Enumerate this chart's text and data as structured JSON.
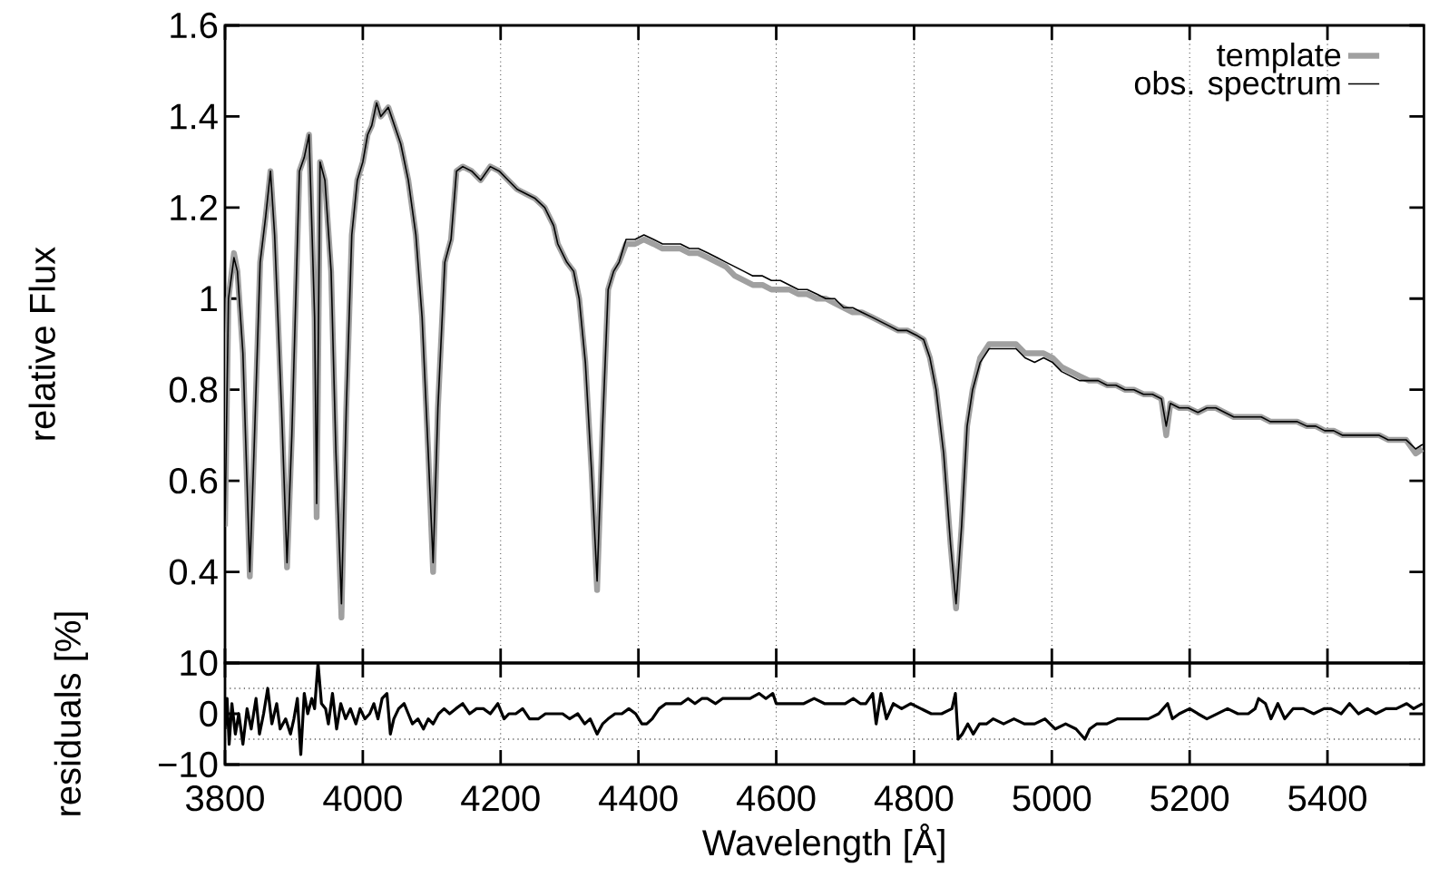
{
  "chart_data": [
    {
      "type": "line",
      "ylabel": "relative Flux",
      "xlim": [
        3800,
        5540
      ],
      "ylim": [
        0.2,
        1.6
      ],
      "xticks": [
        {
          "value": 3800,
          "label": null
        },
        {
          "value": 4000,
          "label": null
        },
        {
          "value": 4200,
          "label": null
        },
        {
          "value": 4400,
          "label": null
        },
        {
          "value": 4600,
          "label": null
        },
        {
          "value": 4800,
          "label": null
        },
        {
          "value": 5000,
          "label": null
        },
        {
          "value": 5200,
          "label": null
        },
        {
          "value": 5400,
          "label": null
        }
      ],
      "yticks": [
        0.4,
        0.6,
        0.8,
        1,
        1.2,
        1.4,
        1.6
      ],
      "tick_labels": "y",
      "grid": "x",
      "legend": "top right",
      "x": [
        3800,
        3805,
        3813,
        3818,
        3826,
        3836,
        3842,
        3851,
        3859,
        3866,
        3872,
        3882,
        3890,
        3897,
        3908,
        3915,
        3922,
        3930,
        3933,
        3938,
        3945,
        3954,
        3961,
        3969,
        3976,
        3984,
        3992,
        4000,
        4007,
        4013,
        4020,
        4026,
        4037,
        4046,
        4055,
        4066,
        4077,
        4086,
        4095,
        4102,
        4109,
        4119,
        4128,
        4136,
        4145,
        4158,
        4171,
        4185,
        4198,
        4211,
        4224,
        4237,
        4250,
        4264,
        4277,
        4283,
        4296,
        4306,
        4314,
        4323,
        4332,
        4340,
        4348,
        4356,
        4364,
        4372,
        4382,
        4395,
        4408,
        4422,
        4435,
        4448,
        4461,
        4474,
        4487,
        4501,
        4514,
        4527,
        4540,
        4553,
        4566,
        4580,
        4593,
        4606,
        4619,
        4632,
        4645,
        4659,
        4672,
        4685,
        4698,
        4711,
        4724,
        4738,
        4751,
        4764,
        4777,
        4790,
        4803,
        4814,
        4823,
        4832,
        4843,
        4853,
        4861,
        4869,
        4877,
        4885,
        4896,
        4909,
        4922,
        4935,
        4948,
        4961,
        4975,
        4988,
        5001,
        5014,
        5027,
        5040,
        5054,
        5067,
        5080,
        5093,
        5106,
        5119,
        5133,
        5146,
        5159,
        5166,
        5172,
        5185,
        5198,
        5212,
        5225,
        5238,
        5251,
        5264,
        5277,
        5291,
        5304,
        5317,
        5330,
        5343,
        5356,
        5370,
        5383,
        5396,
        5409,
        5422,
        5435,
        5449,
        5462,
        5475,
        5488,
        5501,
        5514,
        5528,
        5538
      ],
      "series": [
        {
          "name": "template",
          "color": "#a0a0a0",
          "values": [
            0.5,
            1.0,
            1.1,
            1.06,
            0.88,
            0.39,
            0.66,
            1.08,
            1.18,
            1.28,
            1.14,
            0.76,
            0.41,
            0.7,
            1.28,
            1.31,
            1.36,
            0.96,
            0.52,
            1.3,
            1.26,
            1.06,
            0.66,
            0.3,
            0.76,
            1.14,
            1.26,
            1.3,
            1.36,
            1.38,
            1.43,
            1.4,
            1.42,
            1.38,
            1.34,
            1.26,
            1.14,
            0.96,
            0.66,
            0.4,
            0.76,
            1.08,
            1.13,
            1.28,
            1.29,
            1.28,
            1.26,
            1.29,
            1.28,
            1.26,
            1.24,
            1.23,
            1.22,
            1.2,
            1.16,
            1.12,
            1.08,
            1.06,
            1.0,
            0.86,
            0.62,
            0.36,
            0.72,
            1.02,
            1.06,
            1.08,
            1.12,
            1.12,
            1.13,
            1.12,
            1.11,
            1.11,
            1.11,
            1.1,
            1.1,
            1.09,
            1.08,
            1.07,
            1.05,
            1.04,
            1.03,
            1.03,
            1.02,
            1.02,
            1.02,
            1.01,
            1.01,
            1.0,
            1.0,
            0.99,
            0.98,
            0.97,
            0.97,
            0.96,
            0.95,
            0.94,
            0.93,
            0.93,
            0.92,
            0.91,
            0.87,
            0.8,
            0.66,
            0.46,
            0.32,
            0.5,
            0.72,
            0.8,
            0.87,
            0.9,
            0.9,
            0.9,
            0.9,
            0.88,
            0.88,
            0.88,
            0.87,
            0.85,
            0.84,
            0.83,
            0.82,
            0.82,
            0.81,
            0.81,
            0.8,
            0.8,
            0.79,
            0.79,
            0.78,
            0.7,
            0.77,
            0.76,
            0.76,
            0.75,
            0.76,
            0.76,
            0.75,
            0.74,
            0.74,
            0.74,
            0.74,
            0.73,
            0.73,
            0.73,
            0.73,
            0.72,
            0.72,
            0.71,
            0.71,
            0.7,
            0.7,
            0.7,
            0.7,
            0.7,
            0.69,
            0.69,
            0.69,
            0.66,
            0.67
          ]
        },
        {
          "name": "obs. spectrum",
          "color": "#000000",
          "values": [
            0.5,
            1.0,
            1.09,
            1.06,
            0.88,
            0.4,
            0.66,
            1.08,
            1.18,
            1.28,
            1.14,
            0.76,
            0.42,
            0.7,
            1.28,
            1.31,
            1.36,
            0.96,
            0.55,
            1.3,
            1.26,
            1.06,
            0.66,
            0.33,
            0.76,
            1.14,
            1.26,
            1.3,
            1.36,
            1.38,
            1.43,
            1.4,
            1.42,
            1.38,
            1.34,
            1.26,
            1.14,
            0.96,
            0.66,
            0.42,
            0.76,
            1.08,
            1.13,
            1.28,
            1.29,
            1.28,
            1.26,
            1.29,
            1.28,
            1.26,
            1.24,
            1.23,
            1.22,
            1.2,
            1.16,
            1.12,
            1.08,
            1.06,
            1.0,
            0.86,
            0.62,
            0.38,
            0.72,
            1.02,
            1.06,
            1.08,
            1.13,
            1.13,
            1.14,
            1.13,
            1.12,
            1.12,
            1.12,
            1.11,
            1.11,
            1.1,
            1.09,
            1.08,
            1.07,
            1.06,
            1.05,
            1.05,
            1.04,
            1.04,
            1.03,
            1.02,
            1.02,
            1.01,
            1.0,
            1.0,
            0.98,
            0.98,
            0.97,
            0.96,
            0.95,
            0.94,
            0.93,
            0.93,
            0.92,
            0.91,
            0.87,
            0.8,
            0.66,
            0.46,
            0.33,
            0.5,
            0.72,
            0.8,
            0.86,
            0.89,
            0.89,
            0.89,
            0.89,
            0.87,
            0.86,
            0.87,
            0.86,
            0.84,
            0.83,
            0.82,
            0.82,
            0.82,
            0.81,
            0.81,
            0.8,
            0.8,
            0.79,
            0.79,
            0.78,
            0.72,
            0.77,
            0.76,
            0.76,
            0.75,
            0.76,
            0.76,
            0.75,
            0.74,
            0.74,
            0.74,
            0.74,
            0.73,
            0.73,
            0.73,
            0.73,
            0.72,
            0.72,
            0.71,
            0.71,
            0.7,
            0.7,
            0.7,
            0.7,
            0.7,
            0.69,
            0.69,
            0.69,
            0.67,
            0.68
          ]
        }
      ]
    },
    {
      "type": "line",
      "xlabel": "Wavelength [Å]",
      "ylabel": "residuals [%]",
      "xlim": [
        3800,
        5540
      ],
      "ylim": [
        -10,
        10
      ],
      "xticks": [
        3800,
        4000,
        4200,
        4400,
        4600,
        4800,
        5000,
        5200,
        5400
      ],
      "yticks": [
        {
          "value": -10,
          "label": "−10"
        },
        0,
        10
      ],
      "grid": "x",
      "ref_lines": [
        {
          "axis": "y",
          "value": 5,
          "line_style": "dotted"
        },
        {
          "axis": "y",
          "value": -5,
          "line_style": "dotted"
        }
      ],
      "x": [
        3800,
        3803,
        3806,
        3810,
        3815,
        3820,
        3826,
        3832,
        3838,
        3845,
        3850,
        3856,
        3862,
        3868,
        3875,
        3880,
        3888,
        3895,
        3900,
        3905,
        3910,
        3915,
        3920,
        3926,
        3930,
        3935,
        3940,
        3946,
        3950,
        3956,
        3962,
        3968,
        3975,
        3982,
        3990,
        3996,
        4003,
        4010,
        4016,
        4022,
        4028,
        4035,
        4040,
        4045,
        4052,
        4060,
        4066,
        4072,
        4080,
        4088,
        4095,
        4102,
        4110,
        4118,
        4126,
        4135,
        4145,
        4155,
        4165,
        4175,
        4185,
        4196,
        4205,
        4212,
        4222,
        4232,
        4242,
        4255,
        4265,
        4278,
        4290,
        4300,
        4312,
        4322,
        4330,
        4340,
        4348,
        4356,
        4366,
        4376,
        4386,
        4396,
        4405,
        4412,
        4420,
        4430,
        4440,
        4452,
        4462,
        4472,
        4482,
        4492,
        4500,
        4512,
        4522,
        4532,
        4542,
        4552,
        4562,
        4575,
        4585,
        4595,
        4600,
        4612,
        4625,
        4640,
        4655,
        4670,
        4685,
        4700,
        4712,
        4722,
        4730,
        4740,
        4745,
        4752,
        4760,
        4770,
        4782,
        4795,
        4810,
        4825,
        4840,
        4855,
        4860,
        4864,
        4870,
        4878,
        4886,
        4895,
        4905,
        4915,
        4930,
        4945,
        4960,
        4975,
        4990,
        5005,
        5020,
        5035,
        5048,
        5055,
        5065,
        5080,
        5095,
        5110,
        5125,
        5140,
        5155,
        5168,
        5175,
        5185,
        5200,
        5212,
        5225,
        5240,
        5255,
        5270,
        5285,
        5295,
        5300,
        5310,
        5318,
        5328,
        5338,
        5350,
        5365,
        5380,
        5395,
        5405,
        5420,
        5432,
        5445,
        5458,
        5470,
        5485,
        5500,
        5515,
        5525,
        5538
      ],
      "series": [
        {
          "color": "#000000",
          "values": [
            -3,
            3,
            -6,
            2,
            -4,
            0,
            -6,
            1,
            -3,
            3,
            -4,
            0,
            5,
            -2,
            2,
            -3,
            -1,
            -4,
            -1,
            3,
            -8,
            4,
            0,
            3,
            1,
            10,
            2,
            1,
            -2,
            4,
            -3,
            2,
            -1,
            1,
            -2,
            1,
            -1,
            0,
            2,
            -1,
            3,
            4,
            -4,
            -1,
            1,
            2,
            0,
            -2,
            -1,
            -3,
            -1,
            -2,
            0,
            1,
            0,
            1,
            2,
            0,
            1,
            1,
            0,
            2,
            -1,
            0,
            0,
            1,
            -1,
            -1,
            0,
            0,
            0,
            -1,
            0,
            -2,
            -1,
            -4,
            -2,
            -1,
            0,
            0,
            1,
            0,
            -2,
            -2,
            -1,
            1,
            2,
            2,
            2,
            3,
            2,
            3,
            3,
            2,
            3,
            3,
            3,
            3,
            3,
            4,
            3,
            4,
            2,
            2,
            2,
            2,
            3,
            2,
            2,
            2,
            3,
            2,
            2,
            4,
            -2,
            4,
            -1,
            2,
            1,
            2,
            1,
            0,
            0,
            1,
            4,
            -5,
            -4,
            -2,
            -4,
            -2,
            -2,
            -1,
            -2,
            -1,
            -2,
            -2,
            -1,
            -3,
            -2,
            -3,
            -5,
            -3,
            -2,
            -2,
            -1,
            -1,
            -1,
            -1,
            0,
            2,
            -1,
            0,
            1,
            0,
            -1,
            0,
            1,
            0,
            0,
            1,
            3,
            2,
            -1,
            2,
            -1,
            1,
            1,
            0,
            1,
            1,
            0,
            2,
            0,
            1,
            0,
            1,
            1,
            2,
            1,
            2
          ]
        }
      ]
    }
  ]
}
